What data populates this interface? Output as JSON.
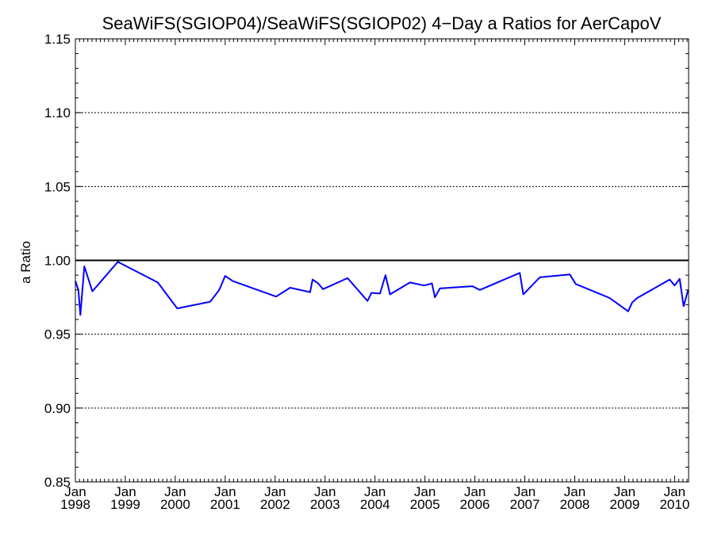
{
  "chart_data": {
    "type": "line",
    "title": "SeaWiFS(SGIOP04)/SeaWiFS(SGIOP02) 4−Day a Ratios for AerCapoV",
    "xlabel": "",
    "ylabel": "a Ratio",
    "ylim": [
      0.85,
      1.15
    ],
    "xlim": [
      1998.0,
      2010.28
    ],
    "y_ticks": [
      "0.85",
      "0.90",
      "0.95",
      "1.00",
      "1.05",
      "1.10",
      "1.15"
    ],
    "y_tick_values": [
      0.85,
      0.9,
      0.95,
      1.0,
      1.05,
      1.1,
      1.15
    ],
    "x_ticks": [
      {
        "month": "Jan",
        "year": "1998",
        "value": 1998
      },
      {
        "month": "Jan",
        "year": "1999",
        "value": 1999
      },
      {
        "month": "Jan",
        "year": "2000",
        "value": 2000
      },
      {
        "month": "Jan",
        "year": "2001",
        "value": 2001
      },
      {
        "month": "Jan",
        "year": "2002",
        "value": 2002
      },
      {
        "month": "Jan",
        "year": "2003",
        "value": 2003
      },
      {
        "month": "Jan",
        "year": "2004",
        "value": 2004
      },
      {
        "month": "Jan",
        "year": "2005",
        "value": 2005
      },
      {
        "month": "Jan",
        "year": "2006",
        "value": 2006
      },
      {
        "month": "Jan",
        "year": "2007",
        "value": 2007
      },
      {
        "month": "Jan",
        "year": "2008",
        "value": 2008
      },
      {
        "month": "Jan",
        "year": "2009",
        "value": 2009
      },
      {
        "month": "Jan",
        "year": "2010",
        "value": 2010
      }
    ],
    "grid": "dotted horizontal at major y ticks",
    "reference_line": 1.0,
    "series": [
      {
        "color": "#0000ff",
        "x": [
          1998.0,
          1998.06,
          1998.1,
          1998.18,
          1998.34,
          1998.85,
          1999.65,
          2000.04,
          2000.7,
          2000.88,
          2001.0,
          2001.15,
          2002.02,
          2002.3,
          2002.7,
          2002.75,
          2002.86,
          2002.96,
          2003.45,
          2003.85,
          2003.93,
          2004.1,
          2004.21,
          2004.3,
          2004.7,
          2004.98,
          2005.05,
          2005.14,
          2005.2,
          2005.3,
          2005.95,
          2006.1,
          2006.9,
          2006.97,
          2007.3,
          2007.9,
          2008.02,
          2008.7,
          2009.07,
          2009.15,
          2009.25,
          2009.9,
          2010.0,
          2010.1,
          2010.18,
          2010.27
        ],
        "y": [
          0.986,
          0.98,
          0.963,
          0.996,
          0.979,
          0.999,
          0.985,
          0.9675,
          0.972,
          0.98,
          0.9895,
          0.986,
          0.9755,
          0.9815,
          0.9785,
          0.987,
          0.9845,
          0.9805,
          0.988,
          0.9725,
          0.978,
          0.9775,
          0.99,
          0.977,
          0.985,
          0.983,
          0.9835,
          0.9845,
          0.975,
          0.981,
          0.9825,
          0.98,
          0.9915,
          0.977,
          0.9885,
          0.9905,
          0.984,
          0.9745,
          0.9655,
          0.9715,
          0.9745,
          0.987,
          0.983,
          0.9875,
          0.969,
          0.98
        ]
      }
    ]
  }
}
